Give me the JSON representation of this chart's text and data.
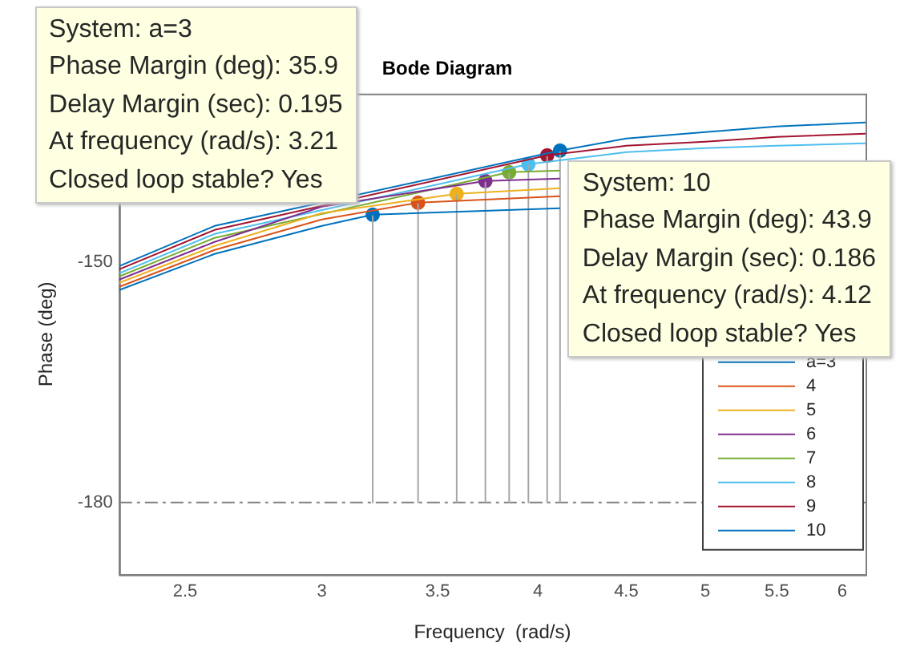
{
  "chart_data": {
    "type": "line",
    "title": "Bode Diagram",
    "xlabel": "Frequency  (rad/s)",
    "ylabel": "Phase (deg)",
    "log": "x",
    "xlim": [
      2.29,
      6.19
    ],
    "xticks": [
      2.5,
      3,
      3.5,
      4,
      4.5,
      5,
      5.5,
      6
    ],
    "ylim": [
      -189,
      -129
    ],
    "yticks": [
      -180,
      -150
    ],
    "grid": false,
    "legend": "bottom right",
    "marker": "none",
    "series": [
      {
        "name": "a=3",
        "color": "#0072bd",
        "x": [
          2.29,
          2.6,
          3.0,
          3.21,
          4.12
        ],
        "values": [
          -153.5,
          -149.0,
          -145.5,
          -144.1,
          -143.3
        ]
      },
      {
        "name": "4",
        "color": "#d95319",
        "x": [
          2.29,
          2.6,
          3.0,
          3.41,
          4.12
        ],
        "values": [
          -153.1,
          -148.5,
          -144.7,
          -142.6,
          -141.8
        ]
      },
      {
        "name": "5",
        "color": "#edb120",
        "x": [
          2.29,
          2.6,
          3.0,
          3.59,
          4.12
        ],
        "values": [
          -152.6,
          -148.0,
          -143.9,
          -141.5,
          -140.8
        ]
      },
      {
        "name": "6",
        "color": "#7e2f8e",
        "x": [
          2.29,
          2.6,
          3.0,
          3.73,
          4.12
        ],
        "values": [
          -152.2,
          -147.5,
          -143.1,
          -139.9,
          -139.6
        ]
      },
      {
        "name": "7",
        "color": "#77ac30",
        "x": [
          2.29,
          2.6,
          3.85,
          4.12
        ],
        "values": [
          -151.8,
          -147.0,
          -138.8,
          -138.6
        ]
      },
      {
        "name": "8",
        "color": "#4dbeee",
        "x": [
          2.29,
          2.6,
          3.95,
          4.5,
          5.0,
          5.5,
          6.19
        ],
        "values": [
          -151.4,
          -146.5,
          -137.8,
          -136.3,
          -135.8,
          -135.5,
          -135.2
        ]
      },
      {
        "name": "9",
        "color": "#a2142f",
        "x": [
          2.29,
          2.6,
          4.05,
          4.5,
          5.0,
          5.5,
          6.19
        ],
        "values": [
          -150.9,
          -146.0,
          -136.7,
          -135.5,
          -135.0,
          -134.4,
          -134.0
        ]
      },
      {
        "name": "10",
        "color": "#0072bd",
        "x": [
          2.29,
          2.6,
          4.12,
          4.5,
          5.0,
          5.5,
          6.19
        ],
        "values": [
          -150.5,
          -145.5,
          -136.1,
          -134.6,
          -133.8,
          -133.1,
          -132.6
        ]
      },
      {
        "type": "line",
        "color": "#a6a6a6",
        "x": [
          3.21,
          3.21,
          null,
          3.41,
          3.41,
          null,
          3.59,
          3.59,
          null,
          3.73,
          3.73,
          null,
          3.85,
          3.85,
          null,
          3.95,
          3.95,
          null,
          4.05,
          4.05,
          null,
          4.12,
          4.12
        ],
        "values": [
          -144.1,
          -180,
          null,
          -142.6,
          -180,
          null,
          -141.5,
          -180,
          null,
          -139.9,
          -180,
          null,
          -138.8,
          -180,
          null,
          -137.8,
          -180,
          null,
          -136.7,
          -180,
          null,
          -136.1,
          -180
        ]
      },
      {
        "type": "scatter",
        "marker": "circle",
        "colors": [
          "#0072bd",
          "#d95319",
          "#edb120",
          "#7e2f8e",
          "#77ac30",
          "#4dbeee",
          "#a2142f",
          "#0072bd"
        ],
        "x": [
          3.21,
          3.41,
          3.59,
          3.73,
          3.85,
          3.95,
          4.05,
          4.12
        ],
        "values": [
          -144.1,
          -142.6,
          -141.5,
          -139.9,
          -138.8,
          -137.8,
          -136.7,
          -136.1
        ]
      }
    ],
    "ref_lines": [
      {
        "axis": "y",
        "value": -180,
        "color": "#808080",
        "line_style": "dashed"
      }
    ],
    "annotations": [
      {
        "text": "System: a=3\nPhase Margin (deg): 35.9\nDelay Margin (sec): 0.195\nAt frequency (rad/s): 3.21\nClosed loop stable? Yes",
        "x": 3.21,
        "y": -144.1
      },
      {
        "text": "System: 10\nPhase Margin (deg): 43.9\nDelay Margin (sec): 0.186\nAt frequency (rad/s): 4.12\nClosed loop stable? Yes",
        "x": 4.12,
        "y": -136.1
      }
    ]
  }
}
